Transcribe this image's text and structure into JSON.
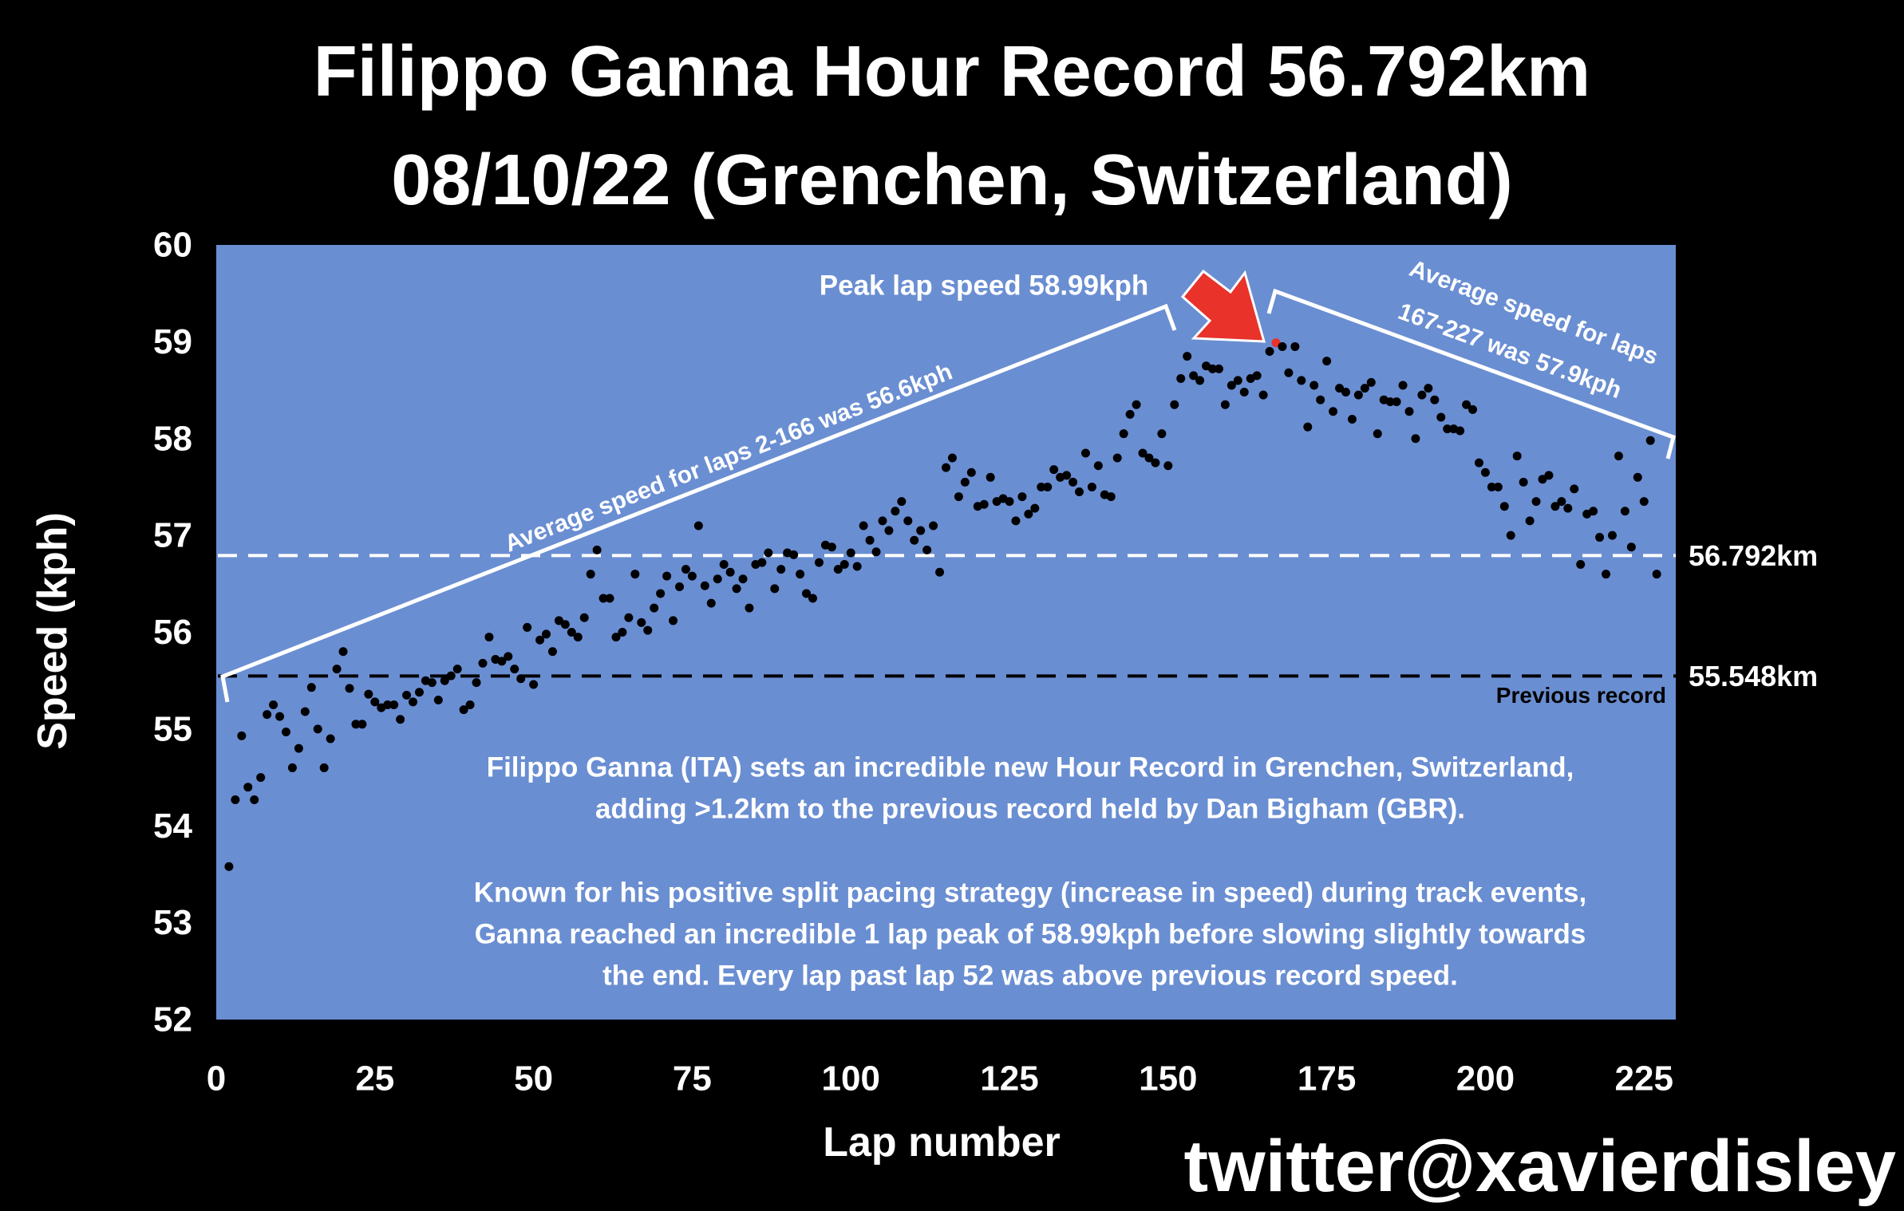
{
  "chart_data": {
    "type": "scatter",
    "title": [
      "Filippo Ganna Hour Record 56.792km",
      "08/10/22 (Grenchen, Switzerland)"
    ],
    "x_label": "Lap number",
    "y_label": "Speed (kph)",
    "xlim": [
      0,
      230
    ],
    "ylim": [
      52,
      60
    ],
    "xticks": [
      0,
      25,
      50,
      75,
      100,
      125,
      150,
      175,
      200,
      225
    ],
    "yticks": [
      52,
      53,
      54,
      55,
      56,
      57,
      58,
      59,
      60
    ],
    "grid": false,
    "color": "#000000",
    "plot_background": "#6a8ed2",
    "highlight": {
      "index": 165,
      "color": "#e8322a"
    },
    "x": [
      2,
      3,
      4,
      5,
      6,
      7,
      8,
      9,
      10,
      11,
      12,
      13,
      14,
      15,
      16,
      17,
      18,
      19,
      20,
      21,
      22,
      23,
      24,
      25,
      26,
      27,
      28,
      29,
      30,
      31,
      32,
      33,
      34,
      35,
      36,
      37,
      38,
      39,
      40,
      41,
      42,
      43,
      44,
      45,
      46,
      47,
      48,
      49,
      50,
      51,
      52,
      53,
      54,
      55,
      56,
      57,
      58,
      59,
      60,
      61,
      62,
      63,
      64,
      65,
      66,
      67,
      68,
      69,
      70,
      71,
      72,
      73,
      74,
      75,
      76,
      77,
      78,
      79,
      80,
      81,
      82,
      83,
      84,
      85,
      86,
      87,
      88,
      89,
      90,
      91,
      92,
      93,
      94,
      95,
      96,
      97,
      98,
      99,
      100,
      101,
      102,
      103,
      104,
      105,
      106,
      107,
      108,
      109,
      110,
      111,
      112,
      113,
      114,
      115,
      116,
      117,
      118,
      119,
      120,
      121,
      122,
      123,
      124,
      125,
      126,
      127,
      128,
      129,
      130,
      131,
      132,
      133,
      134,
      135,
      136,
      137,
      138,
      139,
      140,
      141,
      142,
      143,
      144,
      145,
      146,
      147,
      148,
      149,
      150,
      151,
      152,
      153,
      154,
      155,
      156,
      157,
      158,
      159,
      160,
      161,
      162,
      163,
      164,
      165,
      166,
      167,
      168,
      169,
      170,
      171,
      172,
      173,
      174,
      175,
      176,
      177,
      178,
      179,
      180,
      181,
      182,
      183,
      184,
      185,
      186,
      187,
      188,
      189,
      190,
      191,
      192,
      193,
      194,
      195,
      196,
      197,
      198,
      199,
      200,
      201,
      202,
      203,
      204,
      205,
      206,
      207,
      208,
      209,
      210,
      211,
      212,
      213,
      214,
      215,
      216,
      217,
      218,
      219,
      220,
      221,
      222,
      223,
      224,
      225,
      226,
      227
    ],
    "values": [
      53.58,
      54.27,
      54.93,
      54.4,
      54.27,
      54.5,
      55.15,
      55.25,
      55.13,
      54.97,
      54.6,
      54.8,
      55.18,
      55.43,
      55.0,
      54.6,
      54.9,
      55.62,
      55.8,
      55.42,
      55.05,
      55.05,
      55.36,
      55.28,
      55.22,
      55.25,
      55.25,
      55.1,
      55.35,
      55.28,
      55.38,
      55.5,
      55.48,
      55.3,
      55.5,
      55.55,
      55.62,
      55.2,
      55.25,
      55.48,
      55.68,
      55.95,
      55.72,
      55.7,
      55.75,
      55.62,
      55.52,
      56.05,
      55.46,
      55.92,
      55.98,
      55.8,
      56.12,
      56.08,
      56.0,
      55.95,
      56.15,
      56.6,
      56.85,
      56.35,
      56.35,
      55.95,
      56.0,
      56.15,
      56.6,
      56.1,
      56.02,
      56.25,
      56.4,
      56.58,
      56.12,
      56.47,
      56.65,
      56.58,
      57.1,
      56.48,
      56.3,
      56.55,
      56.7,
      56.62,
      56.45,
      56.55,
      56.25,
      56.7,
      56.72,
      56.82,
      56.45,
      56.65,
      56.82,
      56.8,
      56.6,
      56.4,
      56.35,
      56.72,
      56.9,
      56.88,
      56.65,
      56.7,
      56.82,
      56.68,
      57.1,
      56.95,
      56.83,
      57.15,
      57.05,
      57.25,
      57.35,
      57.15,
      56.95,
      57.05,
      56.85,
      57.1,
      56.62,
      57.7,
      57.8,
      57.4,
      57.55,
      57.65,
      57.3,
      57.32,
      57.6,
      57.35,
      57.38,
      57.35,
      57.15,
      57.4,
      57.22,
      57.28,
      57.5,
      57.5,
      57.68,
      57.6,
      57.62,
      57.55,
      57.45,
      57.85,
      57.5,
      57.72,
      57.42,
      57.4,
      57.8,
      58.05,
      58.25,
      58.35,
      57.85,
      57.8,
      57.75,
      58.05,
      57.72,
      58.35,
      58.62,
      58.85,
      58.65,
      58.6,
      58.75,
      58.72,
      58.72,
      58.35,
      58.55,
      58.6,
      58.48,
      58.62,
      58.65,
      58.45,
      58.9,
      58.99,
      58.95,
      58.68,
      58.95,
      58.6,
      58.12,
      58.55,
      58.4,
      58.8,
      58.28,
      58.52,
      58.48,
      58.2,
      58.45,
      58.52,
      58.58,
      58.05,
      58.4,
      58.38,
      58.38,
      58.55,
      58.28,
      58.0,
      58.45,
      58.52,
      58.4,
      58.22,
      58.1,
      58.1,
      58.08,
      58.35,
      58.3,
      57.75,
      57.65,
      57.5,
      57.5,
      57.3,
      57.0,
      57.82,
      57.55,
      57.15,
      57.35,
      57.58,
      57.62,
      57.3,
      57.35,
      57.28,
      57.48,
      56.7,
      57.22,
      57.25,
      56.98,
      56.6,
      57.0,
      57.82,
      57.25,
      56.88,
      57.6,
      57.35,
      57.98,
      56.6
    ],
    "reference_lines": [
      {
        "value": 56.792,
        "label": "56.792km",
        "color": "#ffffff"
      },
      {
        "value": 55.548,
        "label": "55.548km",
        "color": "#000000",
        "note": "Previous record"
      }
    ],
    "annotations": {
      "peak": "Peak lap speed 58.99kph",
      "avg_first": "Average speed for laps 2-166 was 56.6kph",
      "avg_last": [
        "Average speed for laps",
        "167-227 was 57.9kph"
      ]
    },
    "description": [
      [
        "Filippo Ganna (ITA) sets an incredible new Hour Record in Grenchen, Switzerland,",
        "adding >1.2km to the previous record held by Dan Bigham (GBR)."
      ],
      [
        "Known for his positive split pacing strategy (increase in speed) during track events,",
        "Ganna reached an incredible 1 lap peak of 58.99kph before slowing slightly towards",
        "the end. Every lap past lap 52 was above previous record speed."
      ]
    ],
    "credit": "twitter@xavierdisley"
  }
}
